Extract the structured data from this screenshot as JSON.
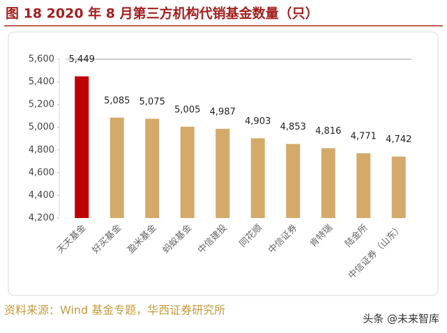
{
  "chart_data": {
    "type": "bar",
    "title": "图 18 2020 年 8 月第三方机构代销基金数量（只）",
    "categories": [
      "天天基金",
      "好买基金",
      "盈米基金",
      "蚂蚁基金",
      "中信建投",
      "同花顺",
      "中信证券",
      "肯特瑞",
      "陆金所",
      "中信证券（山东）"
    ],
    "values": [
      5449,
      5085,
      5075,
      5005,
      4987,
      4903,
      4853,
      4816,
      4771,
      4742
    ],
    "value_labels": [
      "5,449",
      "5,085",
      "5,075",
      "5,005",
      "4,987",
      "4,903",
      "4,853",
      "4,816",
      "4,771",
      "4,742"
    ],
    "colors": [
      "#c00000",
      "#d4aa6a",
      "#d4aa6a",
      "#d4aa6a",
      "#d4aa6a",
      "#d4aa6a",
      "#d4aa6a",
      "#d4aa6a",
      "#d4aa6a",
      "#d4aa6a"
    ],
    "ylim": [
      4200,
      5600
    ],
    "yticks": [
      {
        "value": 4200,
        "label": "4,200"
      },
      {
        "value": 4400,
        "label": "4,400"
      },
      {
        "value": 4600,
        "label": "4,600"
      },
      {
        "value": 4800,
        "label": "4,800"
      },
      {
        "value": 5000,
        "label": "5,000"
      },
      {
        "value": 5200,
        "label": "5,200"
      },
      {
        "value": 5400,
        "label": "5,400"
      },
      {
        "value": 5600,
        "label": "5,600"
      }
    ],
    "source": "资料来源：Wind 基金专题，华西证券研究所",
    "watermark": "头条 @未来智库"
  }
}
